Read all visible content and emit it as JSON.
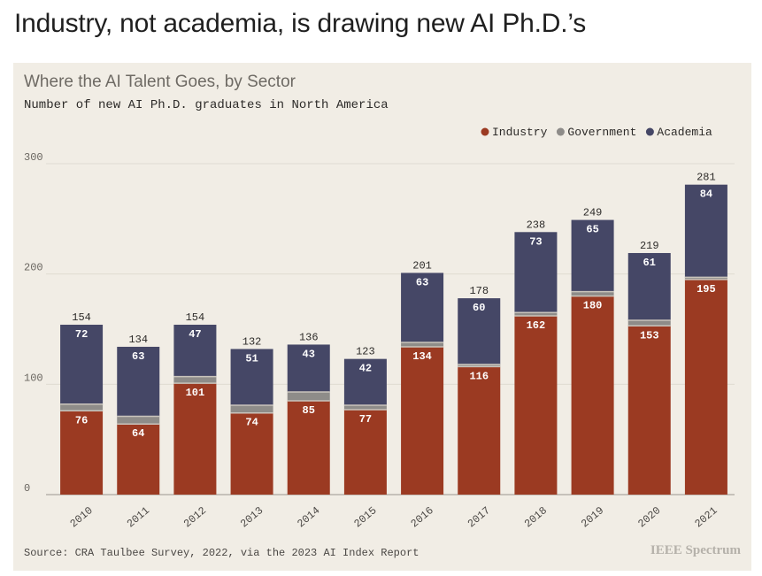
{
  "headline": "Industry, not academia, is drawing new AI Ph.D.’s",
  "brand": "IEEE Spectrum",
  "colors": {
    "industry": "#9b3a22",
    "government": "#8e8c89",
    "academia": "#454766",
    "panel": "#f1ede5",
    "grid": "#e0dbd2"
  },
  "chart_data": {
    "type": "bar",
    "stacked": true,
    "title": "Where the AI Talent Goes, by Sector",
    "subtitle": "Number of new AI Ph.D. graduates in North America",
    "source": "Source: CRA Taulbee Survey, 2022, via the 2023 AI Index Report",
    "xlabel": "",
    "ylabel": "",
    "ylim": [
      0,
      300
    ],
    "yticks": [
      0,
      100,
      200,
      300
    ],
    "legend_position": "top-right",
    "categories": [
      "2010",
      "2011",
      "2012",
      "2013",
      "2014",
      "2015",
      "2016",
      "2017",
      "2018",
      "2019",
      "2020",
      "2021"
    ],
    "series": [
      {
        "name": "Industry",
        "values": [
          76,
          64,
          101,
          74,
          85,
          77,
          134,
          116,
          162,
          180,
          153,
          195
        ]
      },
      {
        "name": "Government",
        "values": [
          6,
          7,
          6,
          7,
          8,
          4,
          4,
          2,
          3,
          4,
          5,
          2
        ]
      },
      {
        "name": "Academia",
        "values": [
          72,
          63,
          47,
          51,
          43,
          42,
          63,
          60,
          73,
          65,
          61,
          84
        ]
      }
    ],
    "totals": [
      154,
      134,
      154,
      132,
      136,
      123,
      201,
      178,
      238,
      249,
      219,
      281
    ]
  }
}
